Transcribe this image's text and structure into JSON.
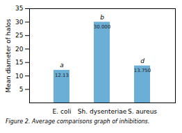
{
  "chart_data": {
    "type": "bar",
    "categories": [
      "E. coli",
      "Sh. dysenteriae",
      "S. aureus"
    ],
    "values": [
      12.13,
      30.0,
      13.75
    ],
    "value_labels": [
      "12.13",
      "30.000",
      "13.750"
    ],
    "data_labels": true,
    "annotations": [
      "a",
      "b",
      "d"
    ],
    "color": "#6baed6",
    "ylabel": "Mean diameter of halos",
    "caption": "Figure 2. Average comparisons graph of inhibitions.",
    "ylim": [
      0,
      35
    ],
    "yticks": [
      5,
      10,
      15,
      20,
      25,
      30,
      35
    ],
    "grid": false
  }
}
